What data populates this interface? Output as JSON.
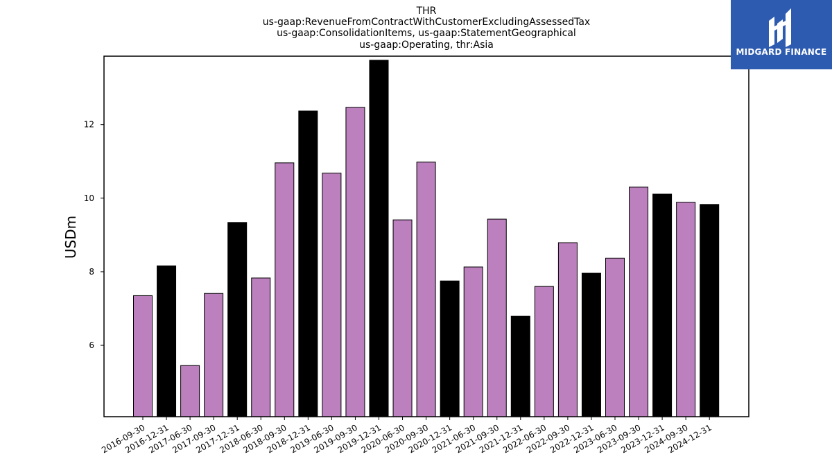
{
  "brand": {
    "name": "MIDGARD FINANCE",
    "color": "#2d5bb0",
    "icon": "midgard-logo-icon"
  },
  "chart_data": {
    "type": "bar",
    "title_lines": [
      "THR",
      "us-gaap:RevenueFromContractWithCustomerExcludingAssessedTax",
      "us-gaap:ConsolidationItems, us-gaap:StatementGeographical",
      "us-gaap:Operating, thr:Asia"
    ],
    "ylabel": "USDm",
    "xlabel": "",
    "ylim": [
      4.06,
      13.86
    ],
    "yticks": [
      6,
      8,
      10,
      12
    ],
    "grid": false,
    "legend": "none",
    "colors": {
      "quarter": "#bb80bd",
      "year_end": "#000000"
    },
    "categories": [
      "2016-09-30",
      "2016-12-31",
      "2017-06-30",
      "2017-09-30",
      "2017-12-31",
      "2018-06-30",
      "2018-09-30",
      "2018-12-31",
      "2019-06-30",
      "2019-09-30",
      "2019-12-31",
      "2020-06-30",
      "2020-09-30",
      "2020-12-31",
      "2021-06-30",
      "2021-09-30",
      "2021-12-31",
      "2022-06-30",
      "2022-09-30",
      "2022-12-31",
      "2023-06-30",
      "2023-09-30",
      "2023-12-31",
      "2024-09-30",
      "2024-12-31"
    ],
    "values": [
      7.35,
      8.16,
      5.45,
      7.41,
      9.34,
      7.83,
      10.96,
      12.37,
      10.68,
      12.47,
      13.75,
      9.41,
      10.98,
      7.75,
      8.13,
      9.43,
      6.79,
      7.6,
      8.79,
      7.96,
      8.37,
      10.3,
      10.11,
      9.89,
      9.83
    ]
  }
}
